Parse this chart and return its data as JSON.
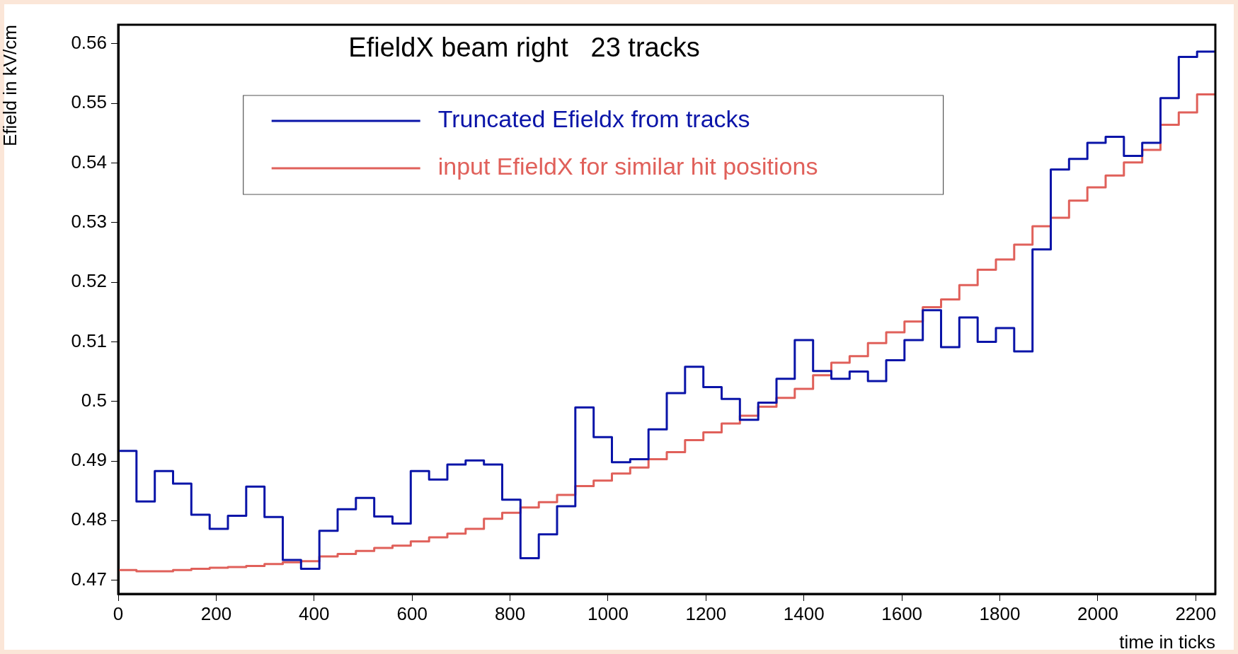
{
  "chart_data": {
    "type": "histogram",
    "title": "EfieldX beam right   23 tracks",
    "xlabel": "time in ticks",
    "ylabel": "Efield in kV/cm",
    "bins": [
      0,
      37.3,
      74.7,
      112,
      149.3,
      186.7,
      224,
      261.3,
      298.7,
      336,
      373.3,
      410.7,
      448,
      485.3,
      522.7,
      560,
      597.3,
      634.7,
      672,
      709.3,
      746.7,
      784,
      821.3,
      858.7,
      896,
      933.3,
      970.7,
      1008,
      1045.3,
      1082.7,
      1120,
      1157.3,
      1194.7,
      1232,
      1269.3,
      1306.7,
      1344,
      1381.3,
      1418.7,
      1456,
      1493.3,
      1530.7,
      1568,
      1605.3,
      1642.7,
      1680,
      1717.3,
      1754.7,
      1792,
      1829.3,
      1866.7,
      1904,
      1941.3,
      1978.7,
      2016,
      2053.3,
      2090.7,
      2128,
      2165.3,
      2202.7,
      2240
    ],
    "series": [
      {
        "name": "Truncated Efieldx from tracks",
        "color": "#0a14a8",
        "values": [
          0.4917,
          0.4832,
          0.4883,
          0.4862,
          0.481,
          0.4786,
          0.4808,
          0.4857,
          0.4806,
          0.4734,
          0.4719,
          0.4783,
          0.4819,
          0.4838,
          0.4807,
          0.4795,
          0.4883,
          0.4869,
          0.4894,
          0.4901,
          0.4894,
          0.4835,
          0.4737,
          0.4777,
          0.4824,
          0.499,
          0.494,
          0.4898,
          0.4903,
          0.4953,
          0.5014,
          0.5058,
          0.5024,
          0.5004,
          0.4969,
          0.4998,
          0.5038,
          0.5103,
          0.5051,
          0.5038,
          0.505,
          0.5034,
          0.5069,
          0.5103,
          0.5153,
          0.5091,
          0.5141,
          0.51,
          0.5123,
          0.5084,
          0.5255,
          0.5389,
          0.5407,
          0.5434,
          0.5444,
          0.5412,
          0.5434,
          0.5509,
          0.5578,
          0.5587
        ]
      },
      {
        "name": "input EfieldX for similar hit positions",
        "color": "#e0605a",
        "values": [
          0.4717,
          0.4715,
          0.4715,
          0.4717,
          0.4719,
          0.4721,
          0.4722,
          0.4724,
          0.4727,
          0.473,
          0.4732,
          0.474,
          0.4744,
          0.4749,
          0.4754,
          0.4758,
          0.4765,
          0.4772,
          0.4778,
          0.4786,
          0.4803,
          0.4813,
          0.4822,
          0.4831,
          0.4843,
          0.4858,
          0.4867,
          0.4879,
          0.4889,
          0.4903,
          0.4915,
          0.4935,
          0.4948,
          0.4963,
          0.4976,
          0.4991,
          0.5006,
          0.5021,
          0.5044,
          0.5065,
          0.5076,
          0.5098,
          0.5116,
          0.5134,
          0.5158,
          0.5171,
          0.5195,
          0.5221,
          0.5238,
          0.5263,
          0.5294,
          0.5308,
          0.5337,
          0.5359,
          0.5379,
          0.5401,
          0.5422,
          0.5464,
          0.5485,
          0.5515
        ]
      }
    ],
    "xlim": [
      0,
      2240
    ],
    "xticks": [
      0,
      200,
      400,
      600,
      800,
      1000,
      1200,
      1400,
      1600,
      1800,
      2000,
      2200
    ],
    "ylim": [
      0.4677,
      0.5632
    ],
    "yticks": [
      {
        "value": 0.47,
        "label": "0.47"
      },
      {
        "value": 0.48,
        "label": "0.48"
      },
      {
        "value": 0.49,
        "label": "0.49"
      },
      {
        "value": 0.5,
        "label": "0.5"
      },
      {
        "value": 0.51,
        "label": "0.51"
      },
      {
        "value": 0.52,
        "label": "0.52"
      },
      {
        "value": 0.53,
        "label": "0.53"
      },
      {
        "value": 0.54,
        "label": "0.54"
      },
      {
        "value": 0.55,
        "label": "0.55"
      },
      {
        "value": 0.56,
        "label": "0.56"
      }
    ],
    "grid": false,
    "legend": "top",
    "line_style": "solid"
  }
}
